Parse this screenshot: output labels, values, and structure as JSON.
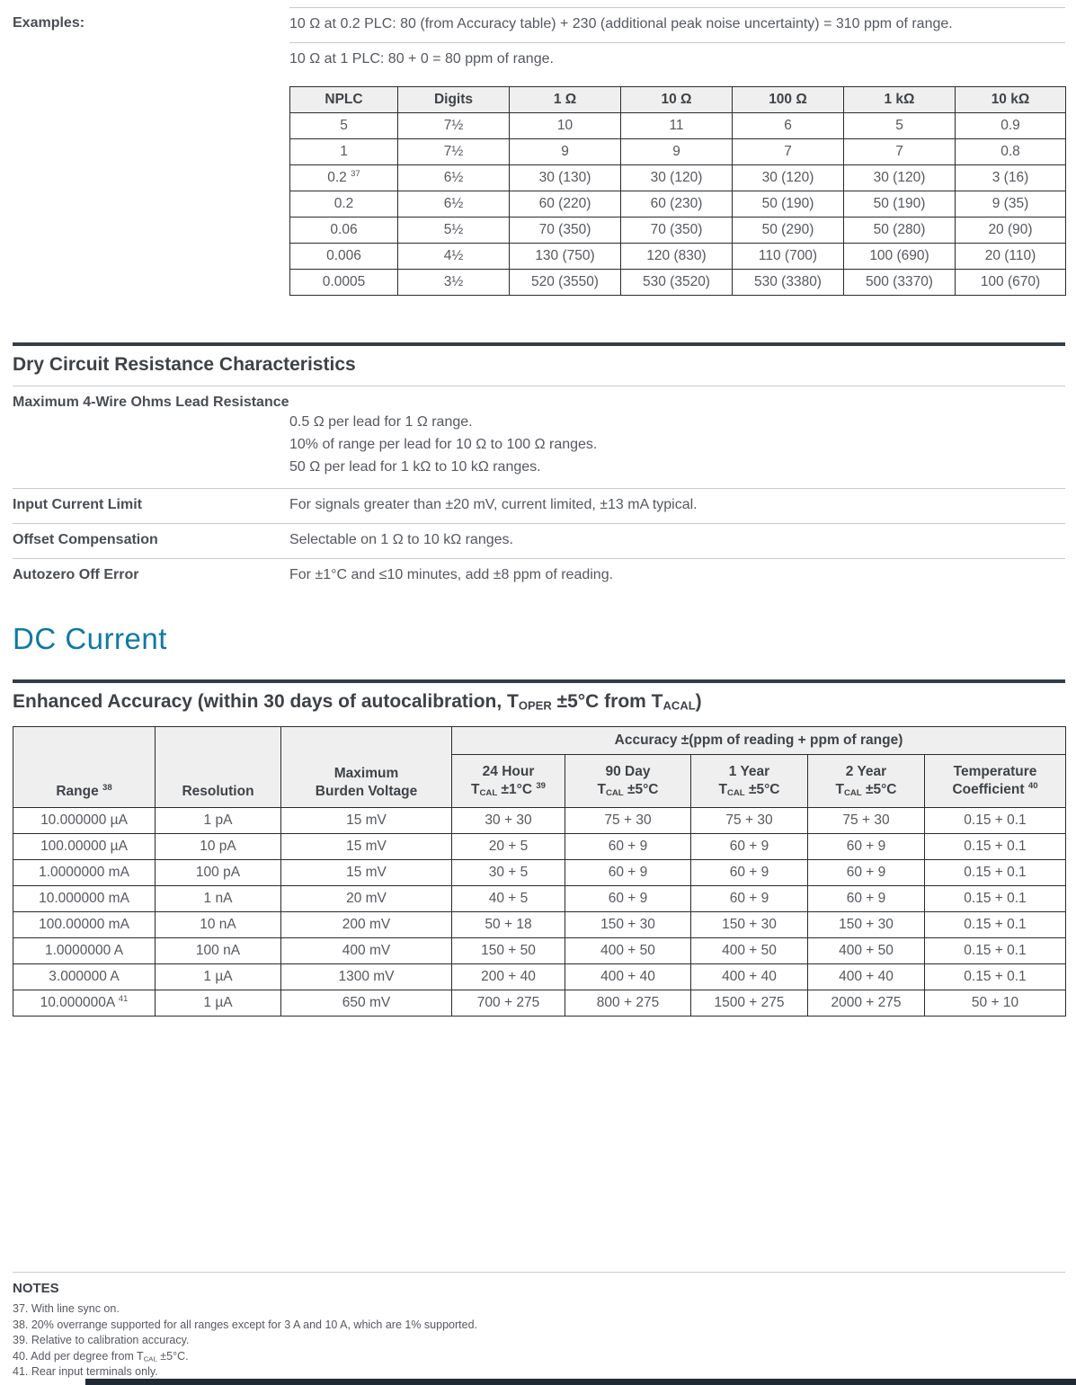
{
  "accent_color": "#0f78a7",
  "rule_color": "#333e49",
  "examples": {
    "label": "Examples:",
    "lines": [
      "10 Ω at 0.2 PLC: 80 (from Accuracy table) + 230 (additional peak noise uncertainty) = 310 ppm of range.",
      "10 Ω at 1 PLC: 80 + 0 = 80 ppm of range."
    ]
  },
  "nplc_table": {
    "headers": [
      "NPLC",
      "Digits",
      "1 Ω",
      "10 Ω",
      "100 Ω",
      "1 kΩ",
      "10 kΩ"
    ],
    "rows": [
      [
        "5",
        "7½",
        "10",
        "11",
        "6",
        "5",
        "0.9"
      ],
      [
        "1",
        "7½",
        "9",
        "9",
        "7",
        "7",
        "0.8"
      ],
      [
        "0.2 <sup>37</sup>",
        "6½",
        "30 (130)",
        "30 (120)",
        "30 (120)",
        "30 (120)",
        "3 (16)"
      ],
      [
        "0.2",
        "6½",
        "60 (220)",
        "60 (230)",
        "50 (190)",
        "50 (190)",
        "9 (35)"
      ],
      [
        "0.06",
        "5½",
        "70 (350)",
        "70 (350)",
        "50 (290)",
        "50 (280)",
        "20 (90)"
      ],
      [
        "0.006",
        "4½",
        "130 (750)",
        "120 (830)",
        "110 (700)",
        "100 (690)",
        "20 (110)"
      ],
      [
        "0.0005",
        "3½",
        "520 (3550)",
        "530 (3520)",
        "530 (3380)",
        "500 (3370)",
        "100 (670)"
      ]
    ]
  },
  "dry_circuit": {
    "title": "Dry Circuit Resistance Characteristics",
    "lead_resistance": {
      "label": "Maximum 4-Wire Ohms Lead Resistance",
      "values": [
        "0.5 Ω per lead for 1 Ω range.",
        "10% of range per lead for 10 Ω to 100 Ω ranges.",
        "50 Ω per lead for 1 kΩ to 10 kΩ ranges."
      ]
    },
    "rows": [
      {
        "label": "Input Current Limit",
        "value": "For signals greater than ±20 mV, current limited, ±13 mA typical."
      },
      {
        "label": "Offset Compensation",
        "value": "Selectable on 1 Ω to 10 kΩ ranges."
      },
      {
        "label": "Autozero Off Error",
        "value": "For ±1°C and ≤10 minutes, add ±8 ppm of reading."
      }
    ]
  },
  "dc_current": {
    "title": "DC Current"
  },
  "enhanced_accuracy": {
    "title_html": "Enhanced Accuracy (within 30 days of autocalibration, T<sub>OPER</sub> ±5°C from T<sub>ACAL</sub>)",
    "table": {
      "group_header": "Accuracy ±(ppm of reading + ppm of range)",
      "side_headers_html": [
        "Range <sup>38</sup>",
        "Resolution",
        "Maximum<br>Burden Voltage"
      ],
      "accuracy_headers_html": [
        "24 Hour<br>T<sub>CAL</sub> ±1°C <sup>39</sup>",
        "90 Day<br>T<sub>CAL</sub> ±5°C",
        "1 Year<br>T<sub>CAL</sub> ±5°C",
        "2 Year<br>T<sub>CAL</sub> ±5°C",
        "Temperature<br>Coefficient <sup>40</sup>"
      ],
      "rows": [
        [
          "10.000000 µA",
          "1 pA",
          "15 mV",
          "30 + 30",
          "75 + 30",
          "75 + 30",
          "75 + 30",
          "0.15 + 0.1"
        ],
        [
          "100.00000 µA",
          "10 pA",
          "15 mV",
          "20 + 5",
          "60 + 9",
          "60 + 9",
          "60 + 9",
          "0.15 + 0.1"
        ],
        [
          "1.0000000 mA",
          "100 pA",
          "15 mV",
          "30 + 5",
          "60 + 9",
          "60 + 9",
          "60 + 9",
          "0.15 + 0.1"
        ],
        [
          "10.000000 mA",
          "1 nA",
          "20 mV",
          "40 + 5",
          "60 + 9",
          "60 + 9",
          "60 + 9",
          "0.15 + 0.1"
        ],
        [
          "100.00000 mA",
          "10 nA",
          "200 mV",
          "50 + 18",
          "150 + 30",
          "150 + 30",
          "150 + 30",
          "0.15 + 0.1"
        ],
        [
          "1.0000000 A",
          "100 nA",
          "400 mV",
          "150 + 50",
          "400 + 50",
          "400 + 50",
          "400 + 50",
          "0.15 + 0.1"
        ],
        [
          "3.000000 A",
          "1 µA",
          "1300 mV",
          "200 + 40",
          "400 + 40",
          "400 + 40",
          "400 + 40",
          "0.15 + 0.1"
        ],
        [
          "10.000000A <sup>41</sup>",
          "1 µA",
          "650 mV",
          "700 + 275",
          "800 + 275",
          "1500 + 275",
          "2000 + 275",
          "50 + 10"
        ]
      ]
    }
  },
  "notes": {
    "title": "NOTES",
    "items_html": [
      "37. With line sync on.",
      "38. 20% overrange supported for all ranges except for 3 A and 10 A, which are 1% supported.",
      "39. Relative to calibration accuracy.",
      "40. Add per degree from T<sub>CAL</sub> ±5°C.",
      "41. Rear input terminals only."
    ]
  }
}
